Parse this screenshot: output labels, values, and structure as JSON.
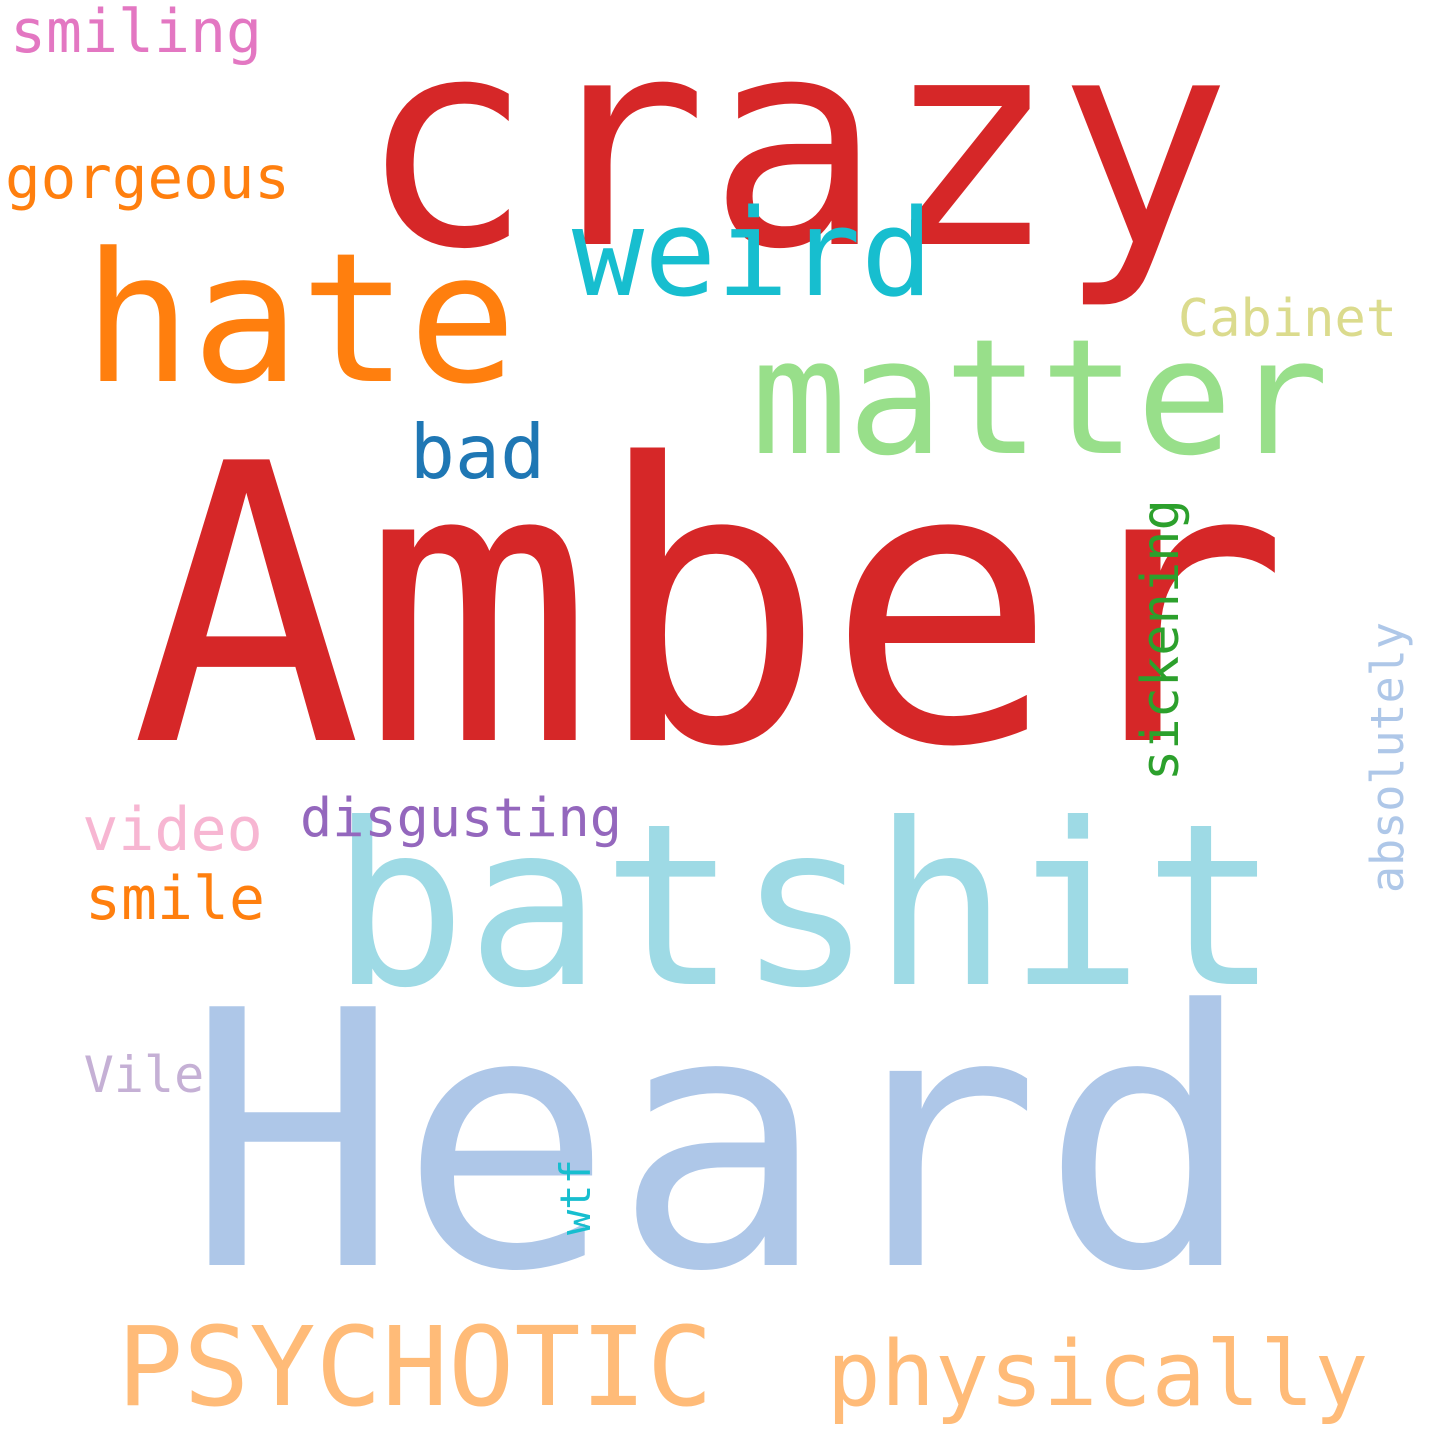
{
  "words": [
    {
      "text": "Amber",
      "color": "#d62728",
      "rotated": false
    },
    {
      "text": "Heard",
      "color": "#aec7e8",
      "rotated": false
    },
    {
      "text": "crazy",
      "color": "#d62728",
      "rotated": false
    },
    {
      "text": "batshit",
      "color": "#9edae5",
      "rotated": false
    },
    {
      "text": "matter",
      "color": "#98df8a",
      "rotated": false
    },
    {
      "text": "hate",
      "color": "#ff7f0e",
      "rotated": false
    },
    {
      "text": "weird",
      "color": "#17becf",
      "rotated": false
    },
    {
      "text": "PSYCHOTIC",
      "color": "#ffbb78",
      "rotated": false
    },
    {
      "text": "physically",
      "color": "#ffbb78",
      "rotated": false
    },
    {
      "text": "bad",
      "color": "#1f77b4",
      "rotated": false
    },
    {
      "text": "sickening",
      "color": "#2ca02c",
      "rotated": true
    },
    {
      "text": "Cabinet",
      "color": "#dbdb8d",
      "rotated": false
    },
    {
      "text": "absolutely",
      "color": "#aec7e8",
      "rotated": true
    },
    {
      "text": "gorgeous",
      "color": "#ff7f0e",
      "rotated": false
    },
    {
      "text": "smiling",
      "color": "#e377c2",
      "rotated": false
    },
    {
      "text": "disgusting",
      "color": "#9467bd",
      "rotated": false
    },
    {
      "text": "video",
      "color": "#f7b6d2",
      "rotated": false
    },
    {
      "text": "smile",
      "color": "#ff7f0e",
      "rotated": false
    },
    {
      "text": "Vile",
      "color": "#c5b0d5",
      "rotated": false
    },
    {
      "text": "wtf",
      "color": "#17becf",
      "rotated": true
    }
  ]
}
